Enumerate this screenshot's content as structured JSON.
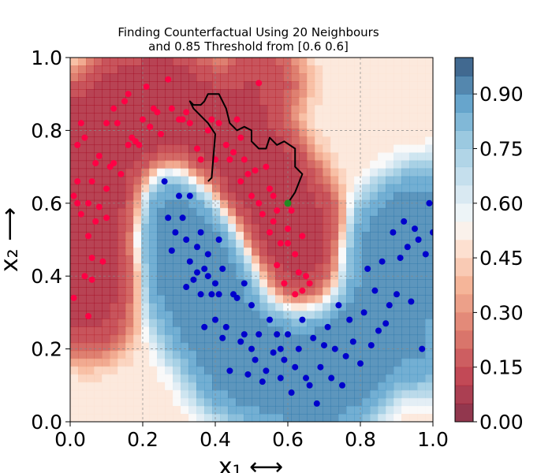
{
  "chart_data": {
    "type": "scatter",
    "title_line1": "Finding Counterfactual Using 20 Neighbours",
    "title_line2": "and 0.85 Threshold from [0.6 0.6]",
    "xlabel": "x₁ ⟷",
    "ylabel": "x₂ ⟶",
    "xlim": [
      0.0,
      1.0
    ],
    "ylim": [
      0.0,
      1.0
    ],
    "x_ticks": [
      "0.0",
      "0.2",
      "0.4",
      "0.6",
      "0.8",
      "1.0"
    ],
    "y_ticks": [
      "0.0",
      "0.2",
      "0.4",
      "0.6",
      "0.8",
      "1.0"
    ],
    "grid": true,
    "background": "filled contour of predicted probability (two-moons classifier)",
    "colorbar": {
      "ticks": [
        "0.00",
        "0.15",
        "0.30",
        "0.45",
        "0.60",
        "0.75",
        "0.90"
      ],
      "range": [
        0.0,
        1.0
      ],
      "colormap": "RdBu"
    },
    "series": [
      {
        "color": "#ff0044",
        "points": [
          [
            0.01,
            0.34
          ],
          [
            0.01,
            0.62
          ],
          [
            0.02,
            0.6
          ],
          [
            0.02,
            0.66
          ],
          [
            0.02,
            0.76
          ],
          [
            0.03,
            0.82
          ],
          [
            0.03,
            0.57
          ],
          [
            0.04,
            0.4
          ],
          [
            0.04,
            0.78
          ],
          [
            0.05,
            0.51
          ],
          [
            0.05,
            0.6
          ],
          [
            0.05,
            0.29
          ],
          [
            0.06,
            0.39
          ],
          [
            0.06,
            0.45
          ],
          [
            0.06,
            0.66
          ],
          [
            0.07,
            0.55
          ],
          [
            0.07,
            0.71
          ],
          [
            0.08,
            0.59
          ],
          [
            0.08,
            0.73
          ],
          [
            0.09,
            0.44
          ],
          [
            0.1,
            0.82
          ],
          [
            0.1,
            0.56
          ],
          [
            0.1,
            0.64
          ],
          [
            0.11,
            0.7
          ],
          [
            0.12,
            0.71
          ],
          [
            0.12,
            0.86
          ],
          [
            0.13,
            0.82
          ],
          [
            0.14,
            0.68
          ],
          [
            0.15,
            0.88
          ],
          [
            0.16,
            0.76
          ],
          [
            0.16,
            0.9
          ],
          [
            0.17,
            0.78
          ],
          [
            0.18,
            0.77
          ],
          [
            0.19,
            0.76
          ],
          [
            0.2,
            0.83
          ],
          [
            0.21,
            0.92
          ],
          [
            0.22,
            0.81
          ],
          [
            0.23,
            0.86
          ],
          [
            0.24,
            0.85
          ],
          [
            0.25,
            0.79
          ],
          [
            0.27,
            0.94
          ],
          [
            0.28,
            0.86
          ],
          [
            0.3,
            0.83
          ],
          [
            0.31,
            0.83
          ],
          [
            0.32,
            0.85
          ],
          [
            0.33,
            0.82
          ],
          [
            0.35,
            0.75
          ],
          [
            0.36,
            0.72
          ],
          [
            0.38,
            0.8
          ],
          [
            0.39,
            0.83
          ],
          [
            0.4,
            0.72
          ],
          [
            0.41,
            0.82
          ],
          [
            0.43,
            0.76
          ],
          [
            0.44,
            0.72
          ],
          [
            0.45,
            0.74
          ],
          [
            0.46,
            0.83
          ],
          [
            0.47,
            0.66
          ],
          [
            0.47,
            0.78
          ],
          [
            0.48,
            0.72
          ],
          [
            0.49,
            0.68
          ],
          [
            0.5,
            0.62
          ],
          [
            0.51,
            0.69
          ],
          [
            0.52,
            0.6
          ],
          [
            0.52,
            0.93
          ],
          [
            0.53,
            0.57
          ],
          [
            0.54,
            0.7
          ],
          [
            0.55,
            0.64
          ],
          [
            0.55,
            0.52
          ],
          [
            0.56,
            0.62
          ],
          [
            0.56,
            0.55
          ],
          [
            0.57,
            0.58
          ],
          [
            0.57,
            0.43
          ],
          [
            0.58,
            0.49
          ],
          [
            0.59,
            0.38
          ],
          [
            0.6,
            0.53
          ],
          [
            0.6,
            0.49
          ],
          [
            0.61,
            0.58
          ],
          [
            0.62,
            0.46
          ],
          [
            0.62,
            0.35
          ],
          [
            0.63,
            0.41
          ],
          [
            0.64,
            0.36
          ],
          [
            0.64,
            0.51
          ],
          [
            0.65,
            0.4
          ],
          [
            0.66,
            0.38
          ]
        ]
      },
      {
        "color": "#0000cc",
        "points": [
          [
            0.26,
            0.66
          ],
          [
            0.27,
            0.56
          ],
          [
            0.28,
            0.47
          ],
          [
            0.29,
            0.52
          ],
          [
            0.3,
            0.62
          ],
          [
            0.31,
            0.56
          ],
          [
            0.32,
            0.5
          ],
          [
            0.32,
            0.37
          ],
          [
            0.33,
            0.44
          ],
          [
            0.33,
            0.62
          ],
          [
            0.34,
            0.39
          ],
          [
            0.35,
            0.41
          ],
          [
            0.35,
            0.48
          ],
          [
            0.36,
            0.35
          ],
          [
            0.36,
            0.52
          ],
          [
            0.37,
            0.26
          ],
          [
            0.37,
            0.42
          ],
          [
            0.38,
            0.46
          ],
          [
            0.38,
            0.4
          ],
          [
            0.39,
            0.35
          ],
          [
            0.4,
            0.38
          ],
          [
            0.4,
            0.28
          ],
          [
            0.41,
            0.35
          ],
          [
            0.41,
            0.5
          ],
          [
            0.42,
            0.23
          ],
          [
            0.42,
            0.42
          ],
          [
            0.43,
            0.26
          ],
          [
            0.44,
            0.14
          ],
          [
            0.45,
            0.35
          ],
          [
            0.46,
            0.34
          ],
          [
            0.47,
            0.22
          ],
          [
            0.48,
            0.24
          ],
          [
            0.48,
            0.38
          ],
          [
            0.49,
            0.13
          ],
          [
            0.5,
            0.2
          ],
          [
            0.5,
            0.32
          ],
          [
            0.51,
            0.17
          ],
          [
            0.52,
            0.24
          ],
          [
            0.53,
            0.11
          ],
          [
            0.54,
            0.14
          ],
          [
            0.55,
            0.28
          ],
          [
            0.56,
            0.19
          ],
          [
            0.57,
            0.24
          ],
          [
            0.58,
            0.12
          ],
          [
            0.58,
            0.2
          ],
          [
            0.59,
            0.17
          ],
          [
            0.6,
            0.24
          ],
          [
            0.61,
            0.08
          ],
          [
            0.62,
            0.15
          ],
          [
            0.63,
            0.2
          ],
          [
            0.64,
            0.28
          ],
          [
            0.65,
            0.12
          ],
          [
            0.66,
            0.1
          ],
          [
            0.67,
            0.23
          ],
          [
            0.68,
            0.05
          ],
          [
            0.69,
            0.15
          ],
          [
            0.7,
            0.21
          ],
          [
            0.71,
            0.26
          ],
          [
            0.72,
            0.12
          ],
          [
            0.73,
            0.2
          ],
          [
            0.74,
            0.32
          ],
          [
            0.75,
            0.1
          ],
          [
            0.76,
            0.18
          ],
          [
            0.77,
            0.28
          ],
          [
            0.78,
            0.22
          ],
          [
            0.8,
            0.16
          ],
          [
            0.81,
            0.3
          ],
          [
            0.82,
            0.42
          ],
          [
            0.83,
            0.21
          ],
          [
            0.84,
            0.36
          ],
          [
            0.85,
            0.25
          ],
          [
            0.86,
            0.44
          ],
          [
            0.87,
            0.27
          ],
          [
            0.88,
            0.32
          ],
          [
            0.89,
            0.52
          ],
          [
            0.9,
            0.35
          ],
          [
            0.91,
            0.45
          ],
          [
            0.92,
            0.55
          ],
          [
            0.93,
            0.48
          ],
          [
            0.94,
            0.33
          ],
          [
            0.95,
            0.53
          ],
          [
            0.96,
            0.5
          ],
          [
            0.97,
            0.2
          ],
          [
            0.98,
            0.46
          ],
          [
            0.99,
            0.6
          ],
          [
            1.0,
            0.52
          ]
        ]
      }
    ],
    "path": {
      "color": "#000000",
      "points": [
        [
          0.6,
          0.6
        ],
        [
          0.62,
          0.63
        ],
        [
          0.64,
          0.68
        ],
        [
          0.62,
          0.7
        ],
        [
          0.62,
          0.75
        ],
        [
          0.59,
          0.77
        ],
        [
          0.57,
          0.76
        ],
        [
          0.55,
          0.78
        ],
        [
          0.54,
          0.75
        ],
        [
          0.52,
          0.75
        ],
        [
          0.5,
          0.77
        ],
        [
          0.5,
          0.8
        ],
        [
          0.48,
          0.81
        ],
        [
          0.46,
          0.8
        ],
        [
          0.44,
          0.82
        ],
        [
          0.43,
          0.86
        ],
        [
          0.41,
          0.9
        ],
        [
          0.38,
          0.9
        ],
        [
          0.37,
          0.88
        ],
        [
          0.36,
          0.87
        ],
        [
          0.34,
          0.87
        ],
        [
          0.33,
          0.88
        ],
        [
          0.34,
          0.86
        ],
        [
          0.36,
          0.84
        ],
        [
          0.38,
          0.82
        ],
        [
          0.4,
          0.79
        ],
        [
          0.39,
          0.67
        ],
        [
          0.38,
          0.66
        ]
      ]
    },
    "start_point": {
      "x": 0.6,
      "y": 0.6,
      "color": "#228b22"
    }
  }
}
